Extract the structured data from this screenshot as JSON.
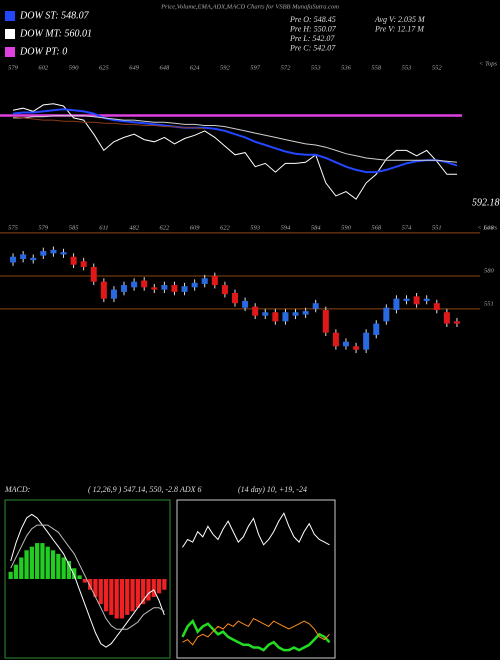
{
  "header": {
    "title": "Price,Volume,EMA,ADX,MACD Charts for VSBB MunafaSutra.com",
    "legend": [
      {
        "label": "DOW ST: 548.07",
        "color": "#2346ff"
      },
      {
        "label": "DOW MT: 560.01",
        "color": "#ffffff"
      },
      {
        "label": "DOW PT: 0",
        "color": "#e040e0"
      }
    ],
    "stats": [
      "Pre  O: 548.45",
      "Pre  H: 550.07",
      "Pre  L: 542.07",
      "Pre  C: 542.07",
      "Avg V: 2.035 M",
      "Pre  V: 12.17 M"
    ]
  },
  "chart_data": [
    {
      "type": "line",
      "side_label": "< Tops",
      "categories": [
        "579",
        null,
        null,
        "602",
        null,
        null,
        "590",
        null,
        null,
        "625",
        null,
        null,
        "649",
        null,
        null,
        "648",
        null,
        null,
        "624",
        null,
        null,
        "592",
        null,
        null,
        "597",
        null,
        null,
        "572",
        null,
        null,
        "553",
        null,
        null,
        "536",
        null,
        null,
        "558",
        null,
        null,
        "553",
        null,
        null,
        "552",
        null,
        null
      ],
      "ylim": [
        505,
        625
      ],
      "hline": {
        "value": 592.18,
        "label": "592.18",
        "color": "#e040e0"
      },
      "series": [
        {
          "color": "#ffffff",
          "width": 1,
          "values": [
            597,
            599,
            596,
            602,
            603,
            601,
            590,
            588,
            575,
            560,
            568,
            572,
            575,
            570,
            568,
            572,
            566,
            571,
            574,
            578,
            572,
            564,
            556,
            558,
            545,
            548,
            540,
            548,
            548,
            549,
            556,
            530,
            518,
            522,
            515,
            530,
            538,
            552,
            560,
            560,
            555,
            560,
            550,
            538,
            538
          ]
        },
        {
          "color": "#2346ff",
          "width": 2,
          "values": [
            594,
            595,
            595,
            596,
            597,
            598,
            597,
            596,
            594,
            590,
            588,
            587,
            586,
            585,
            584,
            583,
            582,
            581,
            581,
            581,
            580,
            578,
            575,
            572,
            568,
            565,
            562,
            559,
            557,
            556,
            556,
            553,
            549,
            545,
            542,
            540,
            540,
            542,
            545,
            548,
            550,
            551,
            551,
            549,
            546
          ]
        },
        {
          "color": "#cfcfcf",
          "width": 1,
          "values": [
            590,
            590,
            591,
            591,
            592,
            592,
            592,
            592,
            591,
            590,
            589,
            588,
            588,
            587,
            586,
            586,
            585,
            584,
            584,
            583,
            583,
            582,
            580,
            578,
            576,
            574,
            572,
            570,
            568,
            566,
            565,
            563,
            560,
            557,
            555,
            553,
            552,
            551,
            551,
            551,
            551,
            551,
            551,
            550,
            549
          ]
        },
        {
          "color": "#8b3a1a",
          "width": 1,
          "values": [
            591,
            590,
            589,
            588,
            588,
            587,
            587,
            586,
            586,
            585,
            585,
            584,
            584,
            583,
            583,
            582,
            582,
            581,
            581,
            580,
            null,
            null,
            null,
            null,
            null,
            null,
            null,
            null,
            null,
            null,
            null,
            null,
            null,
            null,
            null,
            null,
            null,
            null,
            null,
            null,
            null,
            null,
            null,
            null,
            null
          ]
        }
      ]
    },
    {
      "type": "candlestick",
      "side_label": "< Lows",
      "categories": [
        "575",
        null,
        null,
        "579",
        null,
        null,
        "585",
        null,
        null,
        "611",
        null,
        null,
        "482",
        null,
        null,
        "622",
        null,
        null,
        "609",
        null,
        null,
        "622",
        null,
        null,
        "593",
        null,
        null,
        "594",
        null,
        null,
        "584",
        null,
        null,
        "590",
        null,
        null,
        "568",
        null,
        null,
        "574",
        null,
        null,
        "551",
        null,
        null
      ],
      "ylim": [
        400,
        625
      ],
      "yticks": [
        618,
        580,
        551
      ],
      "grid_color": "#8b4513",
      "up_color": "#2a6ae0",
      "down_color": "#e01818",
      "open": [
        592,
        595,
        594,
        598,
        600,
        599,
        597,
        593,
        588,
        575,
        560,
        566,
        570,
        576,
        570,
        568,
        572,
        566,
        570,
        573,
        580,
        572,
        565,
        552,
        553,
        545,
        548,
        540,
        545,
        546,
        551,
        550,
        530,
        518,
        518,
        515,
        528,
        540,
        550,
        558,
        562,
        558,
        556,
        548,
        540
      ],
      "high": [
        600,
        602,
        599,
        605,
        606,
        604,
        600,
        596,
        591,
        578,
        571,
        575,
        578,
        579,
        573,
        575,
        575,
        574,
        577,
        581,
        583,
        575,
        568,
        561,
        556,
        551,
        551,
        551,
        551,
        552,
        559,
        553,
        533,
        525,
        521,
        533,
        541,
        555,
        563,
        563,
        565,
        563,
        559,
        551,
        543
      ],
      "low": [
        589,
        592,
        591,
        595,
        597,
        596,
        587,
        585,
        572,
        557,
        557,
        563,
        567,
        567,
        565,
        565,
        563,
        563,
        567,
        570,
        569,
        561,
        553,
        549,
        542,
        542,
        537,
        537,
        542,
        543,
        548,
        527,
        515,
        515,
        512,
        512,
        525,
        537,
        547,
        555,
        552,
        555,
        547,
        535,
        535
      ],
      "close": [
        597,
        599,
        596,
        602,
        603,
        601,
        590,
        588,
        575,
        560,
        568,
        572,
        575,
        570,
        568,
        572,
        566,
        571,
        574,
        578,
        572,
        564,
        556,
        558,
        545,
        548,
        540,
        548,
        548,
        549,
        556,
        530,
        518,
        522,
        515,
        530,
        538,
        552,
        560,
        560,
        555,
        560,
        550,
        538,
        538
      ]
    },
    {
      "type": "macd",
      "title": "MACD:",
      "subtitle": "( 12,26,9 ) 547.14, 550, -2.8",
      "categories": [
        null,
        null,
        null,
        null,
        null,
        null,
        null,
        null,
        null,
        null,
        null,
        null,
        null,
        null,
        null,
        null,
        null,
        null,
        null,
        null,
        null,
        null,
        null,
        null,
        null,
        null,
        null,
        null,
        null,
        null
      ],
      "ylim": [
        -22,
        22
      ],
      "pos_color": "#22cc22",
      "neg_color": "#ee2222",
      "frame_color": "#2e8b2e",
      "histogram": [
        2,
        4,
        6,
        8,
        9,
        10,
        10,
        9,
        8,
        7,
        6,
        5,
        3,
        1,
        -1,
        -3,
        -5,
        -7,
        -9,
        -10,
        -11,
        -11,
        -10,
        -9,
        -8,
        -7,
        -6,
        -5,
        -4,
        -3
      ],
      "series": [
        {
          "color": "#ffffff",
          "values": [
            5,
            10,
            14,
            17,
            18,
            17,
            15,
            13,
            11,
            9,
            7,
            4,
            1,
            -3,
            -7,
            -11,
            -15,
            -18,
            -19,
            -18,
            -16,
            -14,
            -12,
            -10,
            -8,
            -6,
            -4,
            -3,
            -6,
            -10
          ]
        },
        {
          "color": "#bbbbbb",
          "values": [
            3,
            6,
            9,
            12,
            14,
            15,
            15,
            15,
            14,
            13,
            11,
            9,
            7,
            4,
            1,
            -2,
            -5,
            -8,
            -11,
            -13,
            -14,
            -14,
            -14,
            -13,
            -12,
            -10,
            -9,
            -8,
            -8,
            -9
          ]
        }
      ]
    },
    {
      "type": "adx",
      "title": "ADX   6",
      "subtitle": "(14  day) 10, +19, -24",
      "categories": [
        null,
        null,
        null,
        null,
        null,
        null,
        null,
        null,
        null,
        null,
        null,
        null,
        null,
        null,
        null,
        null,
        null,
        null,
        null,
        null,
        null,
        null,
        null,
        null,
        null,
        null,
        null,
        null,
        null,
        null
      ],
      "ylim": [
        0,
        60
      ],
      "frame_color": "#cccccc",
      "series": [
        {
          "color": "#ffffff",
          "width": 1,
          "values": [
            42,
            45,
            44,
            48,
            46,
            50,
            47,
            45,
            49,
            52,
            48,
            44,
            46,
            50,
            53,
            47,
            43,
            45,
            48,
            52,
            55,
            50,
            46,
            44,
            48,
            51,
            47,
            45,
            44,
            43
          ]
        },
        {
          "color": "#22dd22",
          "width": 2.5,
          "values": [
            8,
            12,
            14,
            10,
            12,
            13,
            11,
            9,
            10,
            8,
            7,
            6,
            5,
            5,
            4,
            4,
            3,
            5,
            6,
            4,
            3,
            3,
            4,
            3,
            4,
            5,
            7,
            9,
            8,
            6
          ]
        },
        {
          "color": "#ff8c1a",
          "width": 1,
          "values": [
            6,
            7,
            5,
            8,
            9,
            8,
            10,
            12,
            11,
            13,
            12,
            14,
            13,
            12,
            15,
            14,
            13,
            12,
            14,
            13,
            12,
            11,
            12,
            13,
            14,
            13,
            11,
            8,
            7,
            9
          ]
        }
      ]
    }
  ]
}
